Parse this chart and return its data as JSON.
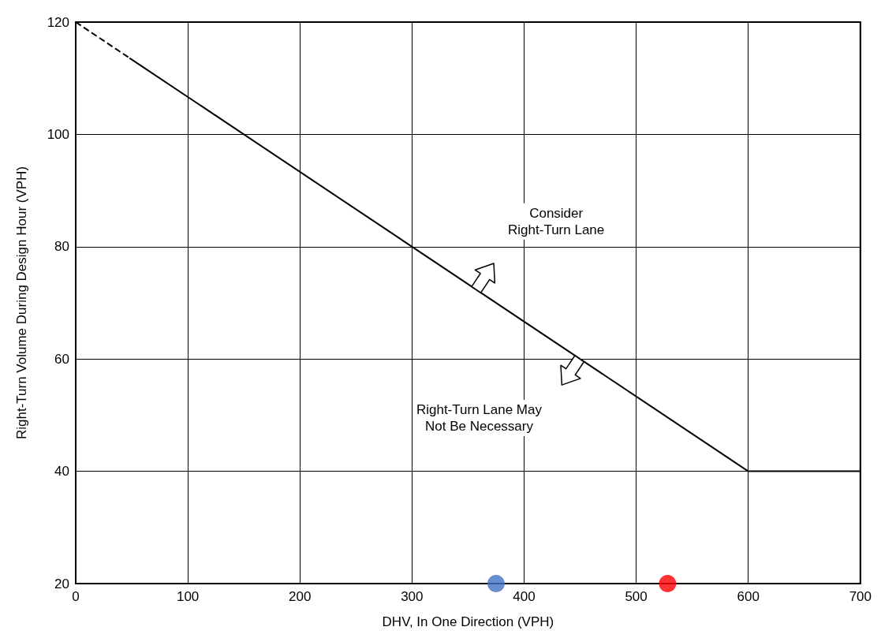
{
  "chart_data": {
    "type": "line",
    "xlabel": "DHV, In One Direction (VPH)",
    "ylabel": "Right-Turn Volume During Design Hour (VPH)",
    "xlim": [
      0,
      700
    ],
    "xticks": [
      0,
      100,
      200,
      300,
      400,
      500,
      600,
      700
    ],
    "ylim": [
      20,
      120
    ],
    "yticks": [
      20,
      40,
      60,
      80,
      100,
      120
    ],
    "grid": true,
    "marker": "none",
    "series": [
      {
        "color": "#000000",
        "line_style": "dashed",
        "x": [
          0,
          48
        ],
        "values": [
          120,
          113.6
        ]
      },
      {
        "color": "#000000",
        "line_style": "solid",
        "x": [
          48,
          600,
          700
        ],
        "values": [
          113.6,
          40,
          40
        ]
      },
      {
        "type": "scatter",
        "marker": "circle",
        "color": "#4472c4",
        "x": [
          375
        ],
        "values": [
          20
        ]
      },
      {
        "type": "scatter",
        "marker": "circle",
        "color": "#ff0000",
        "x": [
          528
        ],
        "values": [
          20
        ]
      }
    ],
    "annotations": [
      "Consider\nRight-Turn Lane",
      "Right-Turn Lane May\nNot Be Necessary"
    ]
  }
}
